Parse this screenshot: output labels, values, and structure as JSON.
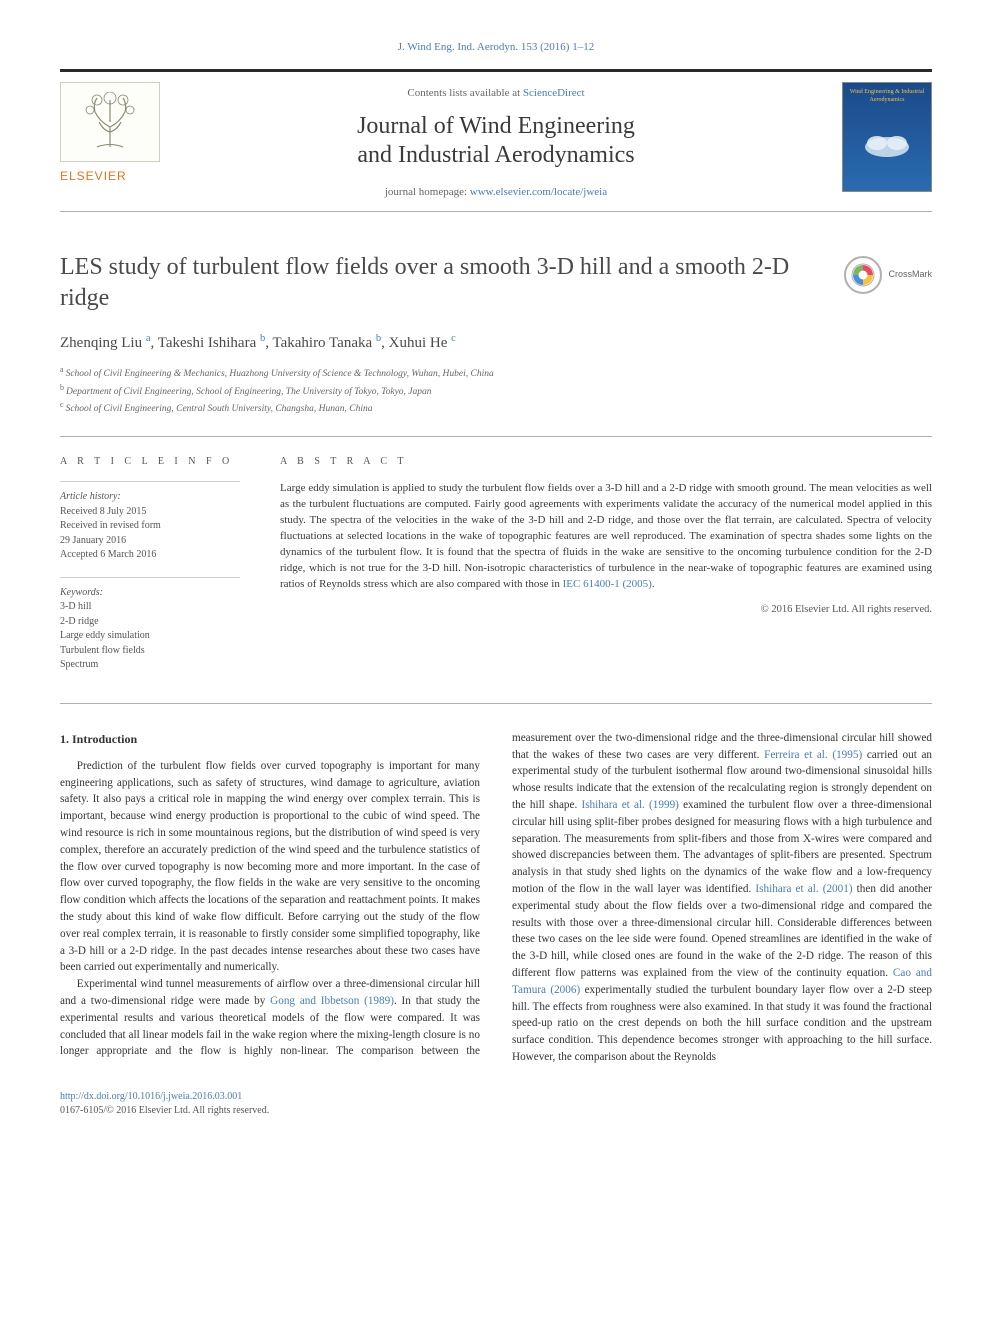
{
  "header_ref": {
    "text_prefix": "J. Wind Eng. Ind. Aerodyn. 153 (2016) 1–12",
    "link": "J. Wind Eng. Ind. Aerodyn. 153 (2016) 1–12"
  },
  "masthead": {
    "contents_label": "Contents lists available at ",
    "contents_link": "ScienceDirect",
    "journal_title_line1": "Journal of Wind Engineering",
    "journal_title_line2": "and Industrial Aerodynamics",
    "homepage_label": "journal homepage: ",
    "homepage_link": "www.elsevier.com/locate/jweia",
    "publisher": "ELSEVIER",
    "cover_title": "Wind Engineering & Industrial Aerodynamics"
  },
  "article": {
    "title": "LES study of turbulent flow fields over a smooth 3-D hill and a smooth 2-D ridge",
    "crossmark_label": "CrossMark",
    "authors_html": [
      {
        "name": "Zhenqing Liu",
        "aff": "a"
      },
      {
        "name": "Takeshi Ishihara",
        "aff": "b"
      },
      {
        "name": "Takahiro Tanaka",
        "aff": "b"
      },
      {
        "name": "Xuhui He",
        "aff": "c"
      }
    ],
    "affiliations": [
      {
        "sup": "a",
        "text": "School of Civil Engineering & Mechanics, Huazhong University of Science & Technology, Wuhan, Hubei, China"
      },
      {
        "sup": "b",
        "text": "Department of Civil Engineering, School of Engineering, The University of Tokyo, Tokyo, Japan"
      },
      {
        "sup": "c",
        "text": "School of Civil Engineering, Central South University, Changsha, Hunan, China"
      }
    ]
  },
  "info": {
    "heading": "A R T I C L E  I N F O",
    "history_label": "Article history:",
    "history": [
      "Received 8 July 2015",
      "Received in revised form",
      "29 January 2016",
      "Accepted 6 March 2016"
    ],
    "keywords_label": "Keywords:",
    "keywords": [
      "3-D hill",
      "2-D ridge",
      "Large eddy simulation",
      "Turbulent flow fields",
      "Spectrum"
    ]
  },
  "abstract": {
    "heading": "A B S T R A C T",
    "text": "Large eddy simulation is applied to study the turbulent flow fields over a 3-D hill and a 2-D ridge with smooth ground. The mean velocities as well as the turbulent fluctuations are computed. Fairly good agreements with experiments validate the accuracy of the numerical model applied in this study. The spectra of the velocities in the wake of the 3-D hill and 2-D ridge, and those over the flat terrain, are calculated. Spectra of velocity fluctuations at selected locations in the wake of topographic features are well reproduced. The examination of spectra shades some lights on the dynamics of the turbulent flow. It is found that the spectra of fluids in the wake are sensitive to the oncoming turbulence condition for the 2-D ridge, which is not true for the 3-D hill. Non-isotropic characteristics of turbulence in the near-wake of topographic features are examined using ratios of Reynolds stress which are also compared with those in ",
    "link": "IEC 61400-1 (2005)",
    "copyright": "© 2016 Elsevier Ltd. All rights reserved."
  },
  "section1": {
    "heading": "1.  Introduction",
    "p1": "Prediction of the turbulent flow fields over curved topography is important for many engineering applications, such as safety of structures, wind damage to agriculture, aviation safety. It also pays a critical role in mapping the wind energy over complex terrain. This is important, because wind energy production is proportional to the cubic of wind speed. The wind resource is rich in some mountainous regions, but the distribution of wind speed is very complex, therefore an accurately prediction of the wind speed and the turbulence statistics of the flow over curved topography is now becoming more and more important. In the case of flow over curved topography, the flow fields in the wake are very sensitive to the oncoming flow condition which affects the locations of the separation and reattachment points. It makes the study about this kind of wake flow difficult. Before carrying out the study of the flow over real complex terrain, it is reasonable to firstly consider some simplified topography, like a 3-D hill or a 2-D ridge. In the past decades intense researches about these two cases have been carried out experimentally and numerically.",
    "p2a": "Experimental wind tunnel measurements of airflow over a three-dimensional circular hill and a two-dimensional ridge were made by ",
    "p2_link1": "Gong and Ibbetson (1989)",
    "p2b": ". In that study the experimental results and various theoretical models of the flow were compared. It was concluded that all linear models fail in the wake region where the mixing-length closure is no longer appropriate and the flow is highly non-linear. The comparison between the measurement over the two-dimensional ridge and the three-dimensional circular hill showed that the wakes of these two cases are very different. ",
    "p2_link2": "Ferreira et al. (1995)",
    "p2c": " carried out an experimental study of the turbulent isothermal flow around two-dimensional sinusoidal hills whose results indicate that the extension of the recalculating region is strongly dependent on the hill shape. ",
    "p2_link3": "Ishihara et al. (1999)",
    "p2d": " examined the turbulent flow over a three-dimensional circular hill using split-fiber probes designed for measuring flows with a high turbulence and separation. The measurements from split-fibers and those from X-wires were compared and showed discrepancies between them. The advantages of split-fibers are presented. Spectrum analysis in that study shed lights on the dynamics of the wake flow and a low-frequency motion of the flow in the wall layer was identified. ",
    "p2_link4": "Ishihara et al. (2001)",
    "p2e": " then did another experimental study about the flow fields over a two-dimensional ridge and compared the results with those over a three-dimensional circular hill. Considerable differences between these two cases on the lee side were found. Opened streamlines are identified in the wake of the 3-D hill, while closed ones are found in the wake of the 2-D ridge. The reason of this different flow patterns was explained from the view of the continuity equation. ",
    "p2_link5": "Cao and Tamura (2006)",
    "p2f": " experimentally studied the turbulent boundary layer flow over a 2-D steep hill. The effects from roughness were also examined. In that study it was found the fractional speed-up ratio on the crest depends on both the hill surface condition and the upstream surface condition. This dependence becomes stronger with approaching to the hill surface. However, the comparison about the Reynolds"
  },
  "footer": {
    "doi": "http://dx.doi.org/10.1016/j.jweia.2016.03.001",
    "issn_line": "0167-6105/© 2016 Elsevier Ltd. All rights reserved."
  },
  "colors": {
    "link": "#4a7db3",
    "text": "#3a3a3a",
    "rule": "#b0b0b0",
    "brand_orange": "#e9711c",
    "cover_bg_top": "#1a4a8a",
    "cover_bg_bottom": "#2a6bb0"
  }
}
